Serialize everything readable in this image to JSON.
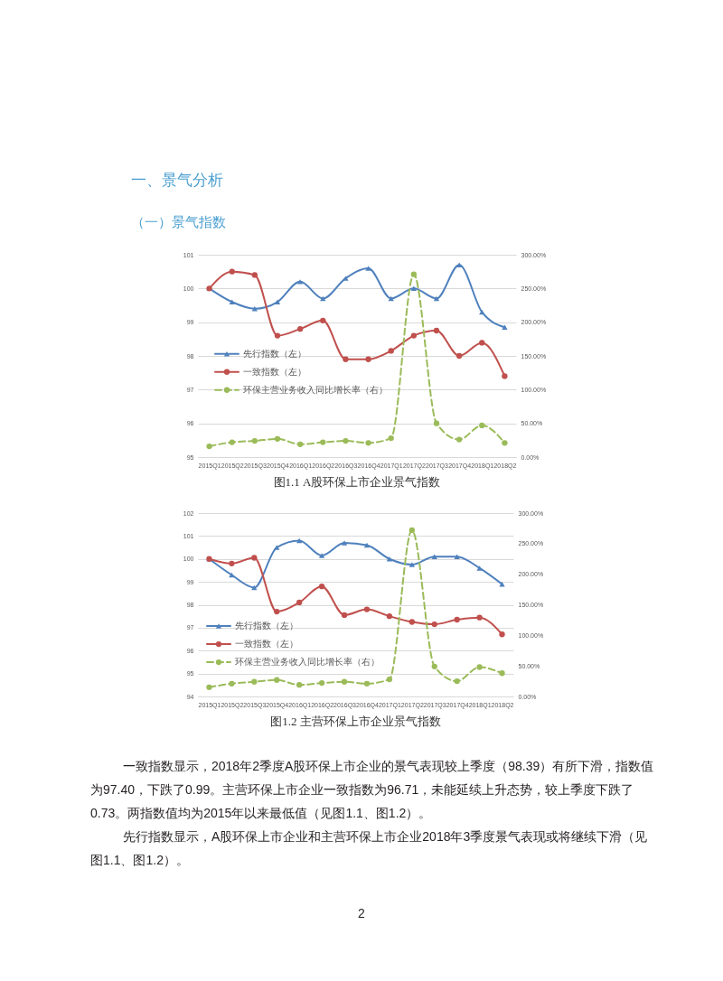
{
  "chart_data": [
    {
      "type": "line",
      "title": "图1.1 A股环保上市企业景气指数",
      "annotations": [
        "一、景气分析",
        "（一）景气指数"
      ],
      "categories": [
        "2015Q1",
        "2015Q2",
        "2015Q3",
        "2015Q4",
        "2016Q1",
        "2016Q2",
        "2016Q3",
        "2016Q4",
        "2017Q1",
        "2017Q2",
        "2017Q3",
        "2017Q4",
        "2018Q1",
        "2018Q2"
      ],
      "series": [
        {
          "name": "先行指数（左）",
          "color": "#4f81bd",
          "marker": "triangle",
          "line_style": "solid",
          "values": [
            100.0,
            99.6,
            99.4,
            99.6,
            100.2,
            99.7,
            100.3,
            100.6,
            99.7,
            100.0,
            99.7,
            100.7,
            99.3,
            98.85
          ]
        },
        {
          "name": "一致指数（左）",
          "color": "#c0504d",
          "marker": "circle",
          "line_style": "solid",
          "values": [
            100.0,
            100.5,
            100.4,
            98.6,
            98.8,
            99.05,
            97.9,
            97.9,
            98.15,
            98.6,
            98.75,
            98.0,
            98.39,
            97.4
          ]
        },
        {
          "name": "环保主营业务收入同比增长率（右）",
          "color": "#9bbb59",
          "marker": "circle",
          "line_style": "dashed",
          "axis": "y2",
          "values": [
            16,
            22,
            24,
            27,
            19,
            22,
            24,
            21,
            28,
            271,
            50,
            26,
            47,
            21
          ]
        }
      ],
      "ylim": [
        95,
        101
      ],
      "yticks": [
        95,
        96,
        97,
        98,
        99,
        100,
        101
      ],
      "y2lim": [
        0,
        300
      ],
      "y2ticks": [
        {
          "value": 0,
          "label": "0.00%"
        },
        {
          "value": 50,
          "label": "50.00%"
        },
        {
          "value": 100,
          "label": "100.00%"
        },
        {
          "value": 150,
          "label": "150.00%"
        },
        {
          "value": 200,
          "label": "200.00%"
        },
        {
          "value": 250,
          "label": "250.00%"
        },
        {
          "value": 300,
          "label": "300.00%"
        }
      ],
      "grid": "y",
      "legend": "left"
    },
    {
      "type": "line",
      "title": "图1.2 主营环保上市企业景气指数",
      "annotations": [
        "一致指数显示，2018年2季度A股环保上市企业的景气表现较上季度（98.39）有所下滑，指数值为97.40，下跌了0.99。主营环保上市企业一致指数为96.71，未能延续上升态势，较上季度下跌了0.73。两指数值均为2015年以来最低值（见图1.1、图1.2）。",
        "先行指数显示，A股环保上市企业和主营环保上市企业2018年3季度景气表现或将继续下滑（见图1.1、图1.2）。",
        "2"
      ],
      "categories": [
        "2015Q1",
        "2015Q2",
        "2015Q3",
        "2015Q4",
        "2016Q1",
        "2016Q2",
        "2016Q3",
        "2016Q4",
        "2017Q1",
        "2017Q2",
        "2017Q3",
        "2017Q4",
        "2018Q1",
        "2018Q2"
      ],
      "series": [
        {
          "name": "先行指数（左）",
          "color": "#4f81bd",
          "marker": "triangle",
          "line_style": "solid",
          "values": [
            100.0,
            99.3,
            98.75,
            100.5,
            100.8,
            100.15,
            100.7,
            100.6,
            100.0,
            99.75,
            100.1,
            100.1,
            99.6,
            98.9
          ]
        },
        {
          "name": "一致指数（左）",
          "color": "#c0504d",
          "marker": "circle",
          "line_style": "solid",
          "values": [
            100.0,
            99.8,
            100.05,
            97.7,
            98.1,
            98.8,
            97.55,
            97.8,
            97.5,
            97.25,
            97.15,
            97.35,
            97.44,
            96.71
          ]
        },
        {
          "name": "环保主营业务收入同比增长率（右）",
          "color": "#9bbb59",
          "marker": "circle",
          "line_style": "dashed",
          "axis": "y2",
          "values": [
            15,
            21,
            24,
            27,
            19,
            22,
            24,
            21,
            28,
            272,
            49,
            25,
            48,
            38
          ]
        }
      ],
      "ylim": [
        94,
        102
      ],
      "yticks": [
        94,
        95,
        96,
        97,
        98,
        99,
        100,
        101,
        102
      ],
      "y2lim": [
        0,
        300
      ],
      "y2ticks": [
        {
          "value": 0,
          "label": "0.00%"
        },
        {
          "value": 50,
          "label": "50.00%"
        },
        {
          "value": 100,
          "label": "100.00%"
        },
        {
          "value": 150,
          "label": "150.00%"
        },
        {
          "value": 200,
          "label": "200.00%"
        },
        {
          "value": 250,
          "label": "250.00%"
        },
        {
          "value": 300,
          "label": "300.00%"
        }
      ],
      "grid": "y",
      "legend": "left"
    }
  ]
}
